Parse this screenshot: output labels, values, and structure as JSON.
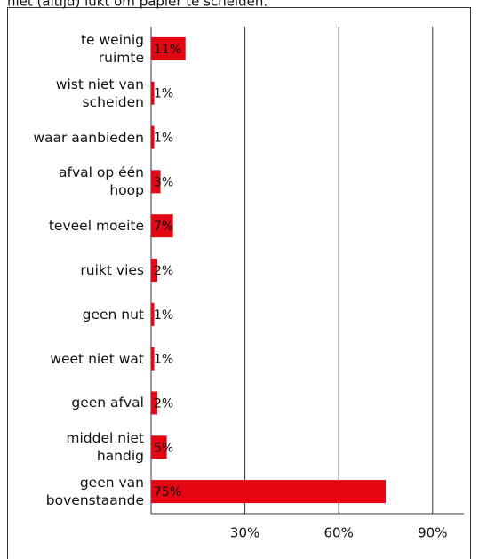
{
  "chart_data": {
    "type": "bar",
    "orientation": "horizontal",
    "title": "niet (altijd) lukt om papier te scheiden.",
    "categories": [
      "te weinig\nruimte",
      "wist niet van\nscheiden",
      "waar aanbieden",
      "afval op één\nhoop",
      "teveel moeite",
      "ruikt vies",
      "geen nut",
      "weet niet wat",
      "geen afval",
      "middel niet\nhandig",
      "geen van\nbovenstaande"
    ],
    "values": [
      11,
      1,
      1,
      3,
      7,
      2,
      1,
      1,
      2,
      5,
      75
    ],
    "value_labels": [
      "11%",
      "1%",
      "1%",
      "3%",
      "7%",
      "2%",
      "1%",
      "1%",
      "2%",
      "5%",
      "75%"
    ],
    "color": "#e30613",
    "xlim": [
      0,
      100
    ],
    "xticks": [
      {
        "value": 30,
        "label": "30%"
      },
      {
        "value": 60,
        "label": "60%"
      },
      {
        "value": 90,
        "label": "90%"
      }
    ],
    "grid": true
  }
}
